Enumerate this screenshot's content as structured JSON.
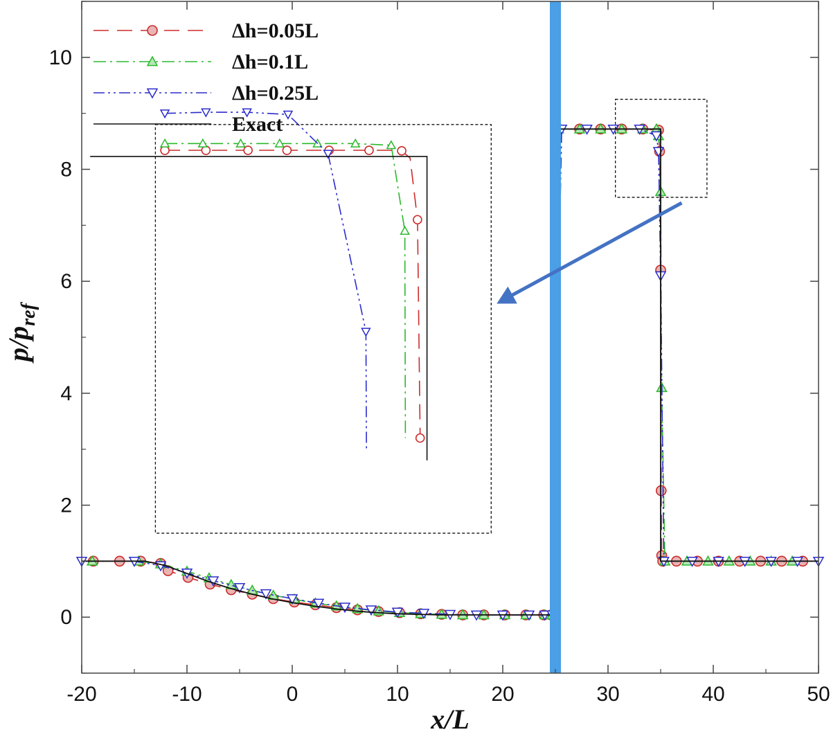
{
  "chart_data": {
    "type": "line",
    "xlabel": "x/L",
    "ylabel": "p/p",
    "ylabel_sub": "ref",
    "xlim": [
      -20,
      50
    ],
    "ylim": [
      -1,
      11
    ],
    "x_ticks": [
      -20,
      -10,
      0,
      10,
      20,
      30,
      40,
      50
    ],
    "y_ticks": [
      0,
      2,
      4,
      6,
      8,
      10
    ],
    "grid": false,
    "legend_position": "top-left",
    "interface_line": {
      "x": 25,
      "color": "#4a9fe6"
    },
    "series": [
      {
        "name": "Δh=0.05L",
        "color": "#cc2b2b",
        "marker_fill": "#e8b4b4",
        "marker": "circle",
        "dash": "22,12",
        "x": [
          -18.9,
          -16.4,
          -14.4,
          -12.5,
          -11.8,
          -9.9,
          -7.8,
          -5.8,
          -3.8,
          -1.8,
          0.2,
          2.2,
          4.2,
          6.2,
          8.2,
          10.2,
          12.2,
          14.2,
          16.2,
          18.2,
          20.2,
          22.2,
          23.9,
          24.6,
          25.3,
          27.3,
          29.3,
          31.3,
          33.3,
          34.8,
          34.9,
          35.0,
          35.05,
          35.1,
          35.2,
          36.5,
          38.5,
          40.5,
          42.5,
          44.5,
          46.5,
          48.5
        ],
        "y": [
          1.0,
          1.0,
          1.0,
          0.96,
          0.83,
          0.71,
          0.59,
          0.49,
          0.41,
          0.33,
          0.27,
          0.22,
          0.17,
          0.13,
          0.1,
          0.08,
          0.06,
          0.05,
          0.04,
          0.04,
          0.04,
          0.04,
          0.04,
          0.04,
          8.72,
          8.72,
          8.72,
          8.72,
          8.72,
          8.7,
          8.32,
          6.2,
          2.26,
          1.1,
          1.0,
          1.0,
          1.0,
          1.0,
          1.0,
          1.0,
          1.0,
          1.0
        ],
        "inset_x": [
          -12.1,
          -10.2,
          -8.2,
          -6.2,
          -4.2,
          -2.3,
          -0.5,
          1.5,
          3.5,
          5.4,
          7.3,
          9.2,
          10.4,
          11.2,
          11.9,
          12.15
        ],
        "inset_y": [
          8.34,
          8.34,
          8.34,
          8.34,
          8.34,
          8.34,
          8.34,
          8.34,
          8.34,
          8.34,
          8.34,
          8.34,
          8.33,
          8.2,
          7.1,
          3.2
        ],
        "inset_marker_x": [
          -12.1,
          -8.2,
          -4.2,
          -0.5,
          3.5,
          7.3,
          10.4,
          11.9,
          12.15
        ],
        "inset_marker_y": [
          8.34,
          8.34,
          8.34,
          8.34,
          8.34,
          8.34,
          8.33,
          7.1,
          3.2
        ]
      },
      {
        "name": "Δh=0.1L",
        "color": "#2bb82b",
        "marker_fill": "#b5e8b5",
        "marker": "triangle-up",
        "dash": "18,6,3,6",
        "x": [
          -19.0,
          -14.6,
          -12.5,
          -10.0,
          -7.9,
          -5.8,
          -3.8,
          -1.8,
          0.2,
          2.2,
          4.2,
          6.2,
          8.2,
          10.2,
          12.2,
          14.2,
          16.2,
          18.2,
          20.2,
          22.2,
          24.0,
          24.7,
          25.3,
          27.3,
          29.3,
          31.3,
          33.3,
          34.6,
          34.8,
          35.0,
          35.1,
          35.4,
          37.5,
          39.5,
          41.5,
          43.5,
          45.5,
          47.5
        ],
        "y": [
          1.0,
          1.0,
          0.95,
          0.82,
          0.7,
          0.58,
          0.48,
          0.39,
          0.32,
          0.25,
          0.2,
          0.15,
          0.11,
          0.08,
          0.06,
          0.05,
          0.04,
          0.04,
          0.04,
          0.04,
          0.04,
          0.04,
          8.72,
          8.72,
          8.72,
          8.72,
          8.72,
          8.72,
          8.6,
          7.6,
          4.1,
          1.0,
          1.0,
          1.0,
          1.0,
          1.0,
          1.0,
          1.0
        ],
        "inset_x": [
          -12.1,
          -8.5,
          -4.9,
          -1.2,
          2.4,
          6.0,
          9.4,
          10.7,
          10.75
        ],
        "inset_y": [
          8.46,
          8.46,
          8.46,
          8.46,
          8.46,
          8.46,
          8.43,
          6.9,
          3.2
        ],
        "inset_marker_x": [
          -12.1,
          -8.5,
          -4.9,
          -1.2,
          2.4,
          6.0,
          9.4,
          10.7
        ],
        "inset_marker_y": [
          8.46,
          8.46,
          8.46,
          8.46,
          8.46,
          8.46,
          8.43,
          6.9
        ]
      },
      {
        "name": "Δh=0.25L",
        "color": "#2b2bcc",
        "marker_fill": "#ffffff",
        "marker": "triangle-down",
        "dash": "16,5,3,5,3,5",
        "x": [
          -20.0,
          -15.0,
          -12.5,
          -10.0,
          -7.5,
          -5.0,
          -2.5,
          0.0,
          2.5,
          5.0,
          7.5,
          10.0,
          12.5,
          15.0,
          17.5,
          20.0,
          22.5,
          24.0,
          24.7,
          25.6,
          28.0,
          30.5,
          33.0,
          34.6,
          34.8,
          35.0,
          35.3,
          38.0,
          40.5,
          43.0,
          45.5,
          48.0,
          50.0
        ],
        "y": [
          1.0,
          1.0,
          0.92,
          0.79,
          0.65,
          0.53,
          0.42,
          0.33,
          0.25,
          0.18,
          0.13,
          0.09,
          0.07,
          0.05,
          0.04,
          0.04,
          0.04,
          0.04,
          0.04,
          8.72,
          8.72,
          8.72,
          8.72,
          8.6,
          8.32,
          6.1,
          1.0,
          1.0,
          1.0,
          1.0,
          1.0,
          1.0,
          1.0
        ],
        "inset_x": [
          -12.1,
          -8.2,
          -4.3,
          -0.4,
          3.4,
          7.0,
          7.05
        ],
        "inset_y": [
          9.0,
          9.02,
          9.02,
          8.98,
          8.28,
          5.1,
          3.0
        ],
        "inset_marker_x": [
          -12.1,
          -8.2,
          -4.3,
          -0.4,
          3.4,
          7.0
        ],
        "inset_marker_y": [
          9.0,
          9.02,
          9.02,
          8.98,
          8.28,
          5.1
        ]
      },
      {
        "name": "Exact",
        "color": "#111111",
        "marker": "none",
        "dash": "",
        "x": [
          -20,
          -16,
          -14,
          -12,
          -10,
          -8,
          -6,
          -4,
          -2,
          0,
          2,
          4,
          6,
          8,
          10,
          12,
          14,
          16,
          18,
          20,
          22,
          25,
          25,
          35,
          35,
          50
        ],
        "y": [
          1.0,
          1.0,
          1.0,
          0.92,
          0.78,
          0.64,
          0.52,
          0.42,
          0.33,
          0.26,
          0.2,
          0.15,
          0.11,
          0.08,
          0.06,
          0.05,
          0.04,
          0.04,
          0.04,
          0.04,
          0.04,
          0.04,
          8.72,
          8.72,
          1.0,
          1.0
        ],
        "inset_x": [
          -19.2,
          12.8,
          12.8
        ],
        "inset_y": [
          8.23,
          8.23,
          2.8
        ]
      }
    ]
  }
}
